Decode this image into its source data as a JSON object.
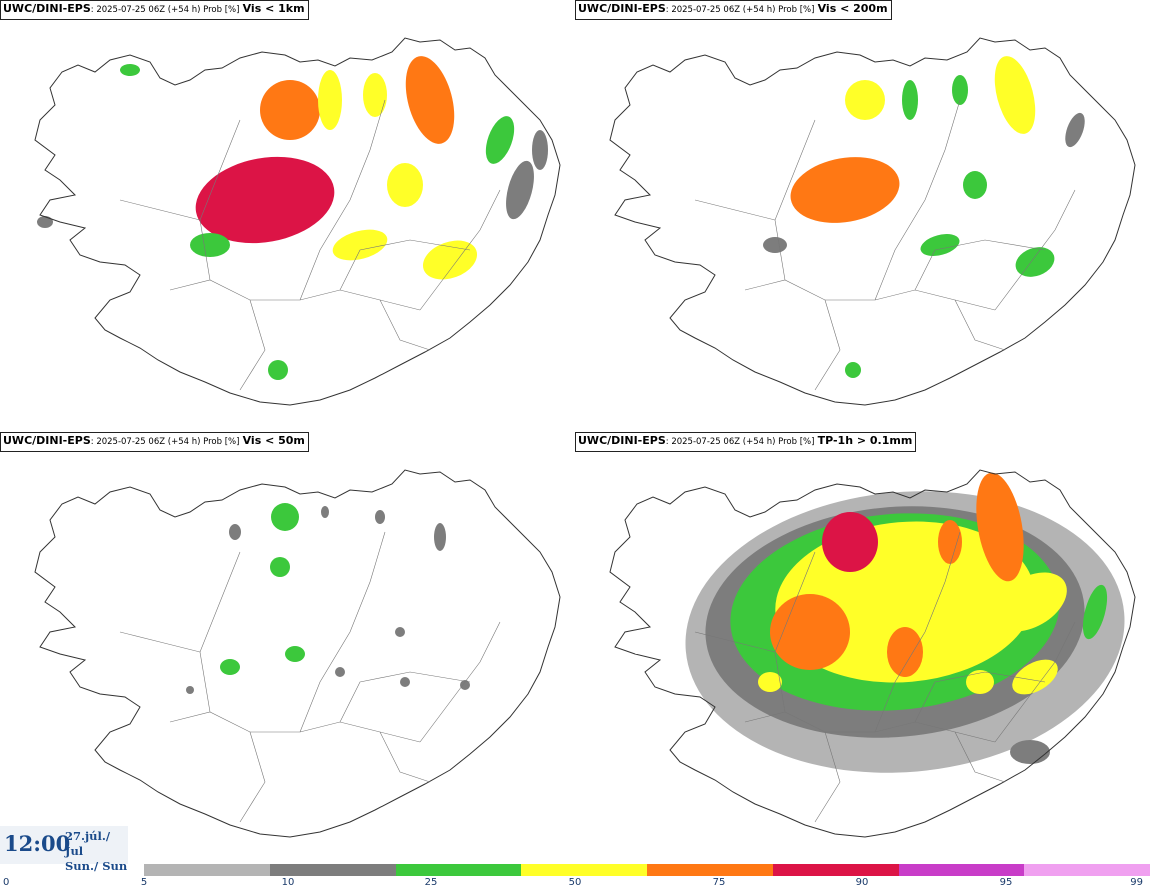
{
  "panels": [
    {
      "model": "UWC/DINI-EPS",
      "meta": ": 2025-07-25 06Z (+54 h) Prob [%]",
      "field": "Vis < 1km"
    },
    {
      "model": "UWC/DINI-EPS",
      "meta": ": 2025-07-25 06Z (+54 h) Prob [%]",
      "field": "Vis < 200m"
    },
    {
      "model": "UWC/DINI-EPS",
      "meta": ": 2025-07-25 06Z (+54 h) Prob [%]",
      "field": "Vis < 50m"
    },
    {
      "model": "UWC/DINI-EPS",
      "meta": ": 2025-07-25 06Z (+54 h) Prob [%]",
      "field": "TP-1h > 0.1mm"
    }
  ],
  "valid_time": {
    "time": "12:00",
    "date_line1": "27.júl./ Jul",
    "date_line2": "Sun./ Sun"
  },
  "colorbar": {
    "ticks": [
      "0",
      "5",
      "10",
      "25",
      "50",
      "75",
      "90",
      "95",
      "99"
    ],
    "colors": [
      "#b4b4b4",
      "#7d7d7d",
      "#3cc83c",
      "#ffff28",
      "#ff7814",
      "#dc1446",
      "#c83cc8",
      "#f0a0f0"
    ]
  }
}
